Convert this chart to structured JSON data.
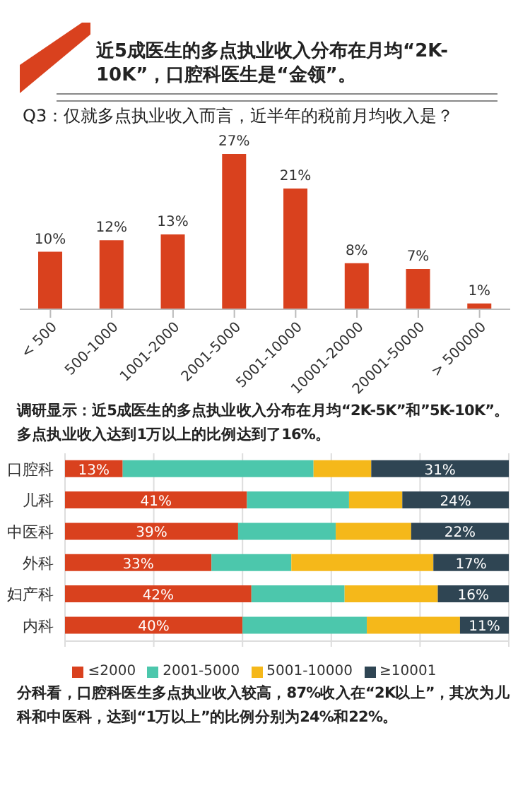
{
  "chart_data": [
    {
      "type": "bar",
      "title": "近5成医生的多点执业收入分布在月均“2K-10K”，口腔科医生是“金领”。",
      "subtitle": "Q3：仅就多点执业收入而言，近半年的税前月均收入是？",
      "categories": [
        "< 500",
        "500-1000",
        "1001-2000",
        "2001-5000",
        "5001-10000",
        "10001-20000",
        "20001-50000",
        "> 500000"
      ],
      "values": [
        10,
        12,
        13,
        27,
        21,
        8,
        7,
        1
      ],
      "value_labels": [
        "10%",
        "12%",
        "13%",
        "27%",
        "21%",
        "8%",
        "7%",
        "1%"
      ],
      "color": "#d9411e",
      "tick_labels": "x",
      "grid": false,
      "legend": false,
      "annotations": [
        "调研显示：近5成医生的多点执业收入分布在月均“2K-5K”和”5K-10K”。多点执业收入达到1万以上的比例达到了16%。"
      ]
    },
    {
      "type": "bar",
      "orientation": "horizontal",
      "stacked": true,
      "categories": [
        "口腔科",
        "儿科",
        "中医科",
        "外科",
        "妇产科",
        "内科"
      ],
      "series": [
        {
          "name": "≤2000",
          "color": "#d9411e",
          "values": [
            13,
            41,
            39,
            33,
            42,
            40
          ],
          "value_labels": [
            "13%",
            "41%",
            "39%",
            "33%",
            "42%",
            "40%"
          ]
        },
        {
          "name": "2001-5000",
          "color": "#4cc7ac",
          "values": [
            43,
            23,
            22,
            18,
            21,
            28
          ],
          "value_labels": [
            null,
            null,
            null,
            null,
            null,
            null
          ]
        },
        {
          "name": "5001-10000",
          "color": "#f5b81a",
          "values": [
            13,
            12,
            17,
            32,
            21,
            21
          ],
          "value_labels": [
            null,
            null,
            null,
            null,
            null,
            null
          ]
        },
        {
          "name": "≥10001",
          "color": "#2f4553",
          "values": [
            31,
            24,
            22,
            17,
            16,
            11
          ],
          "value_labels": [
            "31%",
            "24%",
            "22%",
            "17%",
            "16%",
            "11%"
          ]
        }
      ],
      "xlim": [
        0,
        100
      ],
      "xticks": [
        {
          "value": 0,
          "label": null
        },
        {
          "value": 20,
          "label": null
        },
        {
          "value": 40,
          "label": null
        },
        {
          "value": 60,
          "label": null
        },
        {
          "value": 80,
          "label": null
        },
        {
          "value": 100,
          "label": null
        }
      ],
      "tick_labels": "y",
      "grid": "x",
      "legend": "bottom",
      "annotations": [
        "分科看，口腔科医生多点执业收入较高，87%收入在“2K以上”，其次为儿科和中医科，达到“1万以上”的比例分别为24%和22%。"
      ]
    }
  ]
}
